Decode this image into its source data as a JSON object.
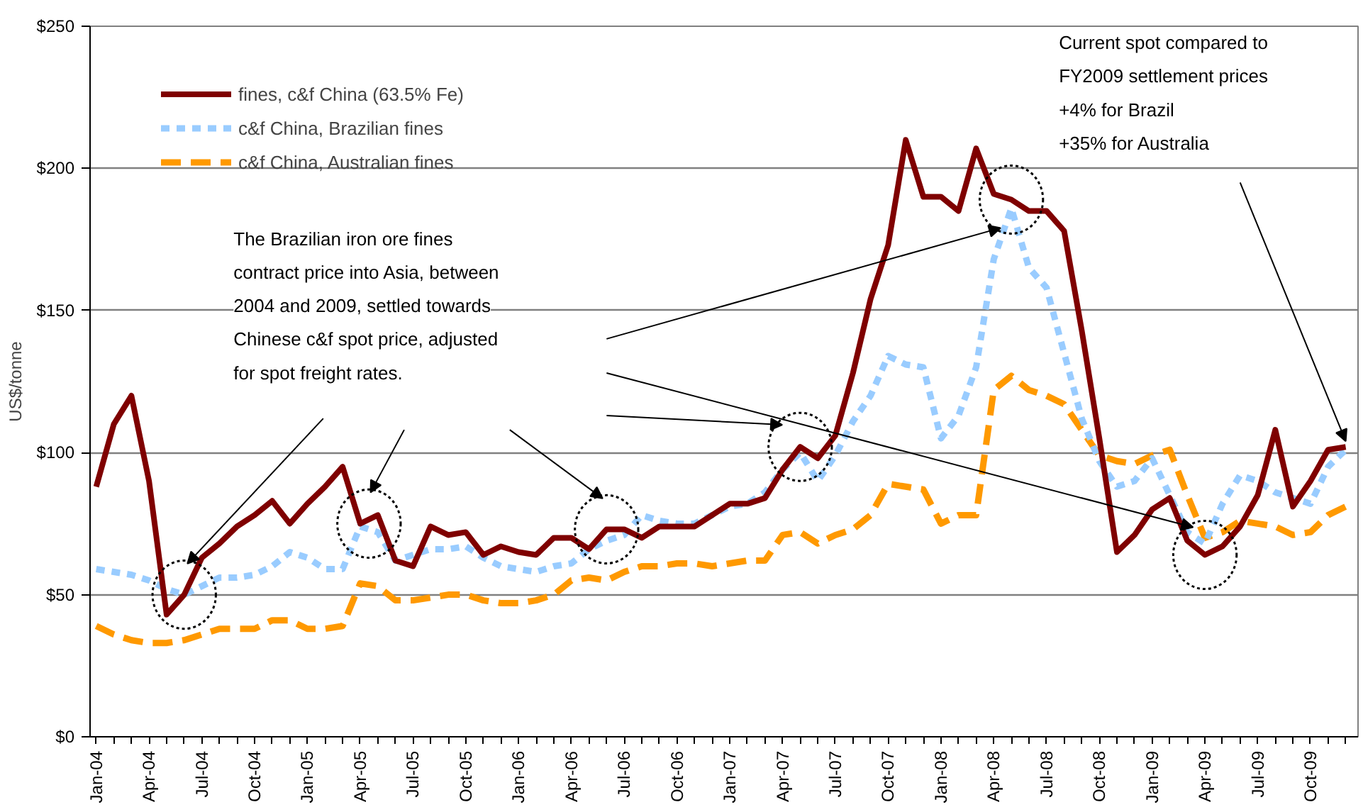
{
  "chart_data": {
    "type": "line",
    "ylabel": "US$/tonne",
    "categories": [
      "Jan-04",
      null,
      null,
      "Apr-04",
      null,
      null,
      "Jul-04",
      null,
      null,
      "Oct-04",
      null,
      null,
      "Jan-05",
      null,
      null,
      "Apr-05",
      null,
      null,
      "Jul-05",
      null,
      null,
      "Oct-05",
      null,
      null,
      "Jan-06",
      null,
      null,
      "Apr-06",
      null,
      null,
      "Jul-06",
      null,
      null,
      "Oct-06",
      null,
      null,
      "Jan-07",
      null,
      null,
      "Apr-07",
      null,
      null,
      "Jul-07",
      null,
      null,
      "Oct-07",
      null,
      null,
      "Jan-08",
      null,
      null,
      "Apr-08",
      null,
      null,
      "Jul-08",
      null,
      null,
      "Oct-08",
      null,
      null,
      "Jan-09",
      null,
      null,
      "Apr-09",
      null,
      null,
      "Jul-09",
      null,
      null,
      "Oct-09",
      null,
      null
    ],
    "series": [
      {
        "name": "fines, c&f China (63.5% Fe)",
        "color": "#7f0000",
        "line_style": "solid",
        "values": [
          88,
          110,
          120,
          90,
          43,
          50,
          63,
          68,
          74,
          78,
          83,
          75,
          82,
          88,
          95,
          75,
          78,
          62,
          60,
          74,
          71,
          72,
          64,
          67,
          65,
          64,
          70,
          70,
          66,
          73,
          73,
          70,
          74,
          74,
          74,
          78,
          82,
          82,
          84,
          94,
          102,
          98,
          106,
          128,
          154,
          173,
          210,
          190,
          190,
          185,
          207,
          191,
          189,
          185,
          185,
          178,
          143,
          105,
          65,
          71,
          80,
          84,
          69,
          64,
          67,
          74,
          85,
          108,
          81,
          90,
          101,
          102
        ]
      },
      {
        "name": "c&f China, Brazilian fines",
        "color": "#99ccff",
        "line_style": "dashed",
        "values": [
          59,
          58,
          57,
          55,
          52,
          50,
          53,
          56,
          56,
          57,
          60,
          65,
          63,
          59,
          59,
          74,
          72,
          62,
          64,
          66,
          66,
          67,
          63,
          60,
          59,
          58,
          60,
          61,
          66,
          69,
          71,
          78,
          76,
          75,
          75,
          78,
          81,
          82,
          86,
          94,
          100,
          90,
          99,
          111,
          120,
          134,
          131,
          130,
          105,
          113,
          130,
          168,
          186,
          165,
          158,
          135,
          112,
          97,
          88,
          90,
          98,
          85,
          72,
          68,
          82,
          92,
          90,
          86,
          84,
          82,
          95,
          101
        ]
      },
      {
        "name": "c&f China, Australian fines",
        "color": "#ff9900",
        "line_style": "longdash",
        "values": [
          39,
          36,
          34,
          33,
          33,
          34,
          36,
          38,
          38,
          38,
          41,
          41,
          38,
          38,
          39,
          54,
          53,
          48,
          48,
          49,
          50,
          50,
          48,
          47,
          47,
          48,
          50,
          55,
          56,
          55,
          58,
          60,
          60,
          61,
          61,
          60,
          61,
          62,
          62,
          71,
          72,
          68,
          71,
          73,
          78,
          89,
          88,
          87,
          75,
          78,
          78,
          122,
          127,
          122,
          120,
          117,
          108,
          99,
          97,
          96,
          99,
          101,
          85,
          70,
          72,
          76,
          75,
          74,
          71,
          72,
          78,
          81
        ]
      }
    ],
    "ylim": [
      0,
      250
    ],
    "yticks": [
      {
        "value": 0,
        "label": "$0"
      },
      {
        "value": 50,
        "label": "$50"
      },
      {
        "value": 100,
        "label": "$100"
      },
      {
        "value": 150,
        "label": "$150"
      },
      {
        "value": 200,
        "label": "$200"
      },
      {
        "value": 250,
        "label": "$250"
      }
    ],
    "grid": "y",
    "legend": "top left",
    "annotations": [
      "The Brazilian iron ore fines\ncontract price into Asia, between\n2004 and 2009, settled towards\nChinese c&f spot price, adjusted\nfor spot freight rates.",
      "Current spot compared to\nFY2009 settlement prices\n+4% for Brazil\n+35% for Australia"
    ]
  }
}
